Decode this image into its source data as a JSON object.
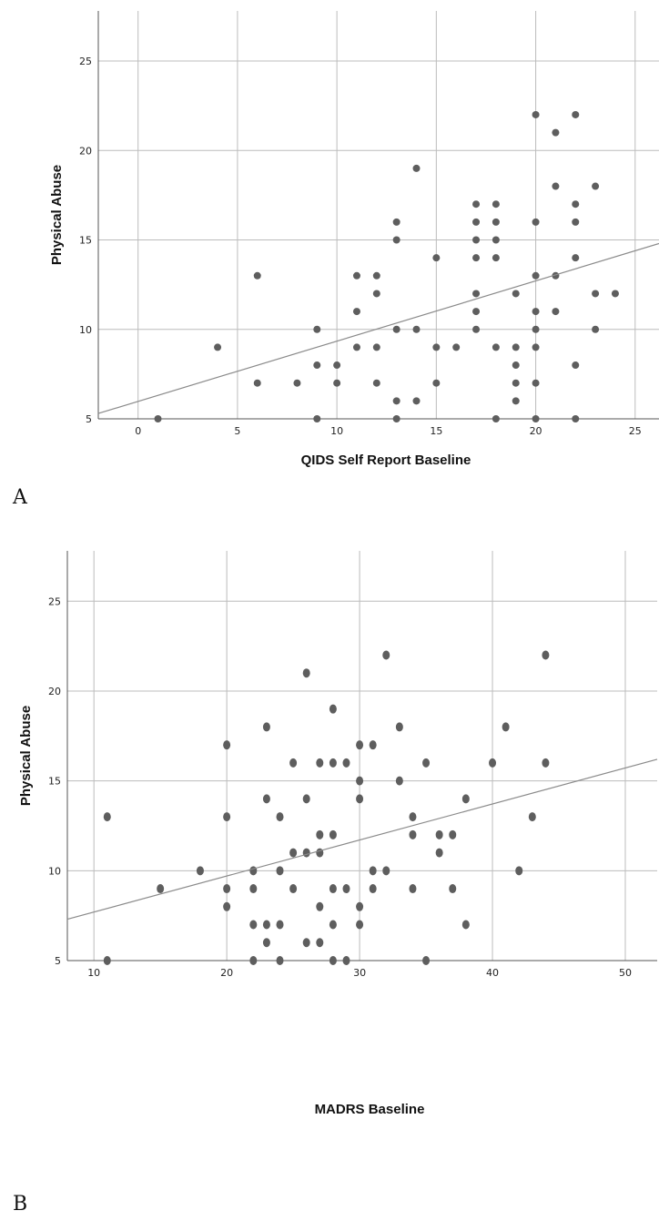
{
  "panels": [
    {
      "label": "A"
    },
    {
      "label": "B"
    }
  ],
  "chart_data": [
    {
      "type": "scatter",
      "xlabel": "QIDS Self Report Baseline",
      "ylabel": "Physical Abuse",
      "xlim": [
        -2,
        26.2
      ],
      "ylim": [
        5,
        27.8
      ],
      "xticks": [
        0,
        5,
        10,
        15,
        20,
        25
      ],
      "yticks": [
        5,
        10,
        15,
        20,
        25
      ],
      "grid": true,
      "point_color": "#5e5e5e",
      "points": [
        {
          "x": 1,
          "y": 5
        },
        {
          "x": 4,
          "y": 9
        },
        {
          "x": 6,
          "y": 13
        },
        {
          "x": 6,
          "y": 7
        },
        {
          "x": 8,
          "y": 7
        },
        {
          "x": 9,
          "y": 10
        },
        {
          "x": 9,
          "y": 8
        },
        {
          "x": 9,
          "y": 5
        },
        {
          "x": 10,
          "y": 8
        },
        {
          "x": 10,
          "y": 7
        },
        {
          "x": 11,
          "y": 13
        },
        {
          "x": 11,
          "y": 11
        },
        {
          "x": 11,
          "y": 9
        },
        {
          "x": 12,
          "y": 13
        },
        {
          "x": 12,
          "y": 12
        },
        {
          "x": 12,
          "y": 9
        },
        {
          "x": 12,
          "y": 7
        },
        {
          "x": 13,
          "y": 16
        },
        {
          "x": 13,
          "y": 15
        },
        {
          "x": 13,
          "y": 10
        },
        {
          "x": 13,
          "y": 6
        },
        {
          "x": 13,
          "y": 5
        },
        {
          "x": 14,
          "y": 19
        },
        {
          "x": 14,
          "y": 10
        },
        {
          "x": 14,
          "y": 6
        },
        {
          "x": 15,
          "y": 14
        },
        {
          "x": 15,
          "y": 9
        },
        {
          "x": 15,
          "y": 7
        },
        {
          "x": 16,
          "y": 9
        },
        {
          "x": 17,
          "y": 17
        },
        {
          "x": 17,
          "y": 16
        },
        {
          "x": 17,
          "y": 15
        },
        {
          "x": 17,
          "y": 14
        },
        {
          "x": 17,
          "y": 12
        },
        {
          "x": 17,
          "y": 11
        },
        {
          "x": 17,
          "y": 10
        },
        {
          "x": 18,
          "y": 17
        },
        {
          "x": 18,
          "y": 16
        },
        {
          "x": 18,
          "y": 15
        },
        {
          "x": 18,
          "y": 14
        },
        {
          "x": 18,
          "y": 9
        },
        {
          "x": 18,
          "y": 5
        },
        {
          "x": 19,
          "y": 12
        },
        {
          "x": 19,
          "y": 9
        },
        {
          "x": 19,
          "y": 8
        },
        {
          "x": 19,
          "y": 7
        },
        {
          "x": 19,
          "y": 6
        },
        {
          "x": 20,
          "y": 22
        },
        {
          "x": 20,
          "y": 16
        },
        {
          "x": 20,
          "y": 13
        },
        {
          "x": 20,
          "y": 11
        },
        {
          "x": 20,
          "y": 10
        },
        {
          "x": 20,
          "y": 9
        },
        {
          "x": 20,
          "y": 7
        },
        {
          "x": 20,
          "y": 5
        },
        {
          "x": 21,
          "y": 21
        },
        {
          "x": 21,
          "y": 18
        },
        {
          "x": 21,
          "y": 13
        },
        {
          "x": 21,
          "y": 11
        },
        {
          "x": 22,
          "y": 22
        },
        {
          "x": 22,
          "y": 17
        },
        {
          "x": 22,
          "y": 16
        },
        {
          "x": 22,
          "y": 14
        },
        {
          "x": 22,
          "y": 8
        },
        {
          "x": 22,
          "y": 5
        },
        {
          "x": 23,
          "y": 18
        },
        {
          "x": 23,
          "y": 12
        },
        {
          "x": 23,
          "y": 10
        },
        {
          "x": 24,
          "y": 12
        }
      ],
      "fit_line": {
        "x": [
          -2,
          26.2
        ],
        "y": [
          5.3,
          14.8
        ]
      }
    },
    {
      "type": "scatter",
      "xlabel": "MADRS Baseline",
      "ylabel": "Physical Abuse",
      "xlim": [
        8,
        52.4
      ],
      "ylim": [
        5,
        27.8
      ],
      "xticks": [
        10,
        20,
        30,
        40,
        50
      ],
      "yticks": [
        5,
        10,
        15,
        20,
        25
      ],
      "grid": true,
      "point_color": "#5e5e5e",
      "points": [
        {
          "x": 11,
          "y": 13
        },
        {
          "x": 11,
          "y": 5
        },
        {
          "x": 15,
          "y": 9
        },
        {
          "x": 18,
          "y": 10
        },
        {
          "x": 20,
          "y": 17
        },
        {
          "x": 20,
          "y": 13
        },
        {
          "x": 20,
          "y": 9
        },
        {
          "x": 20,
          "y": 8
        },
        {
          "x": 22,
          "y": 10
        },
        {
          "x": 22,
          "y": 9
        },
        {
          "x": 22,
          "y": 7
        },
        {
          "x": 22,
          "y": 5
        },
        {
          "x": 23,
          "y": 18
        },
        {
          "x": 23,
          "y": 14
        },
        {
          "x": 23,
          "y": 7
        },
        {
          "x": 23,
          "y": 6
        },
        {
          "x": 24,
          "y": 13
        },
        {
          "x": 24,
          "y": 10
        },
        {
          "x": 24,
          "y": 7
        },
        {
          "x": 24,
          "y": 5
        },
        {
          "x": 25,
          "y": 16
        },
        {
          "x": 25,
          "y": 11
        },
        {
          "x": 25,
          "y": 9
        },
        {
          "x": 26,
          "y": 21
        },
        {
          "x": 26,
          "y": 14
        },
        {
          "x": 26,
          "y": 11
        },
        {
          "x": 26,
          "y": 6
        },
        {
          "x": 27,
          "y": 16
        },
        {
          "x": 27,
          "y": 12
        },
        {
          "x": 27,
          "y": 11
        },
        {
          "x": 27,
          "y": 8
        },
        {
          "x": 27,
          "y": 6
        },
        {
          "x": 28,
          "y": 19
        },
        {
          "x": 28,
          "y": 16
        },
        {
          "x": 28,
          "y": 12
        },
        {
          "x": 28,
          "y": 9
        },
        {
          "x": 28,
          "y": 7
        },
        {
          "x": 28,
          "y": 5
        },
        {
          "x": 29,
          "y": 16
        },
        {
          "x": 29,
          "y": 9
        },
        {
          "x": 29,
          "y": 5
        },
        {
          "x": 30,
          "y": 17
        },
        {
          "x": 30,
          "y": 15
        },
        {
          "x": 30,
          "y": 14
        },
        {
          "x": 30,
          "y": 8
        },
        {
          "x": 30,
          "y": 7
        },
        {
          "x": 31,
          "y": 17
        },
        {
          "x": 31,
          "y": 10
        },
        {
          "x": 31,
          "y": 9
        },
        {
          "x": 32,
          "y": 22
        },
        {
          "x": 32,
          "y": 10
        },
        {
          "x": 33,
          "y": 18
        },
        {
          "x": 33,
          "y": 15
        },
        {
          "x": 34,
          "y": 13
        },
        {
          "x": 34,
          "y": 12
        },
        {
          "x": 34,
          "y": 9
        },
        {
          "x": 35,
          "y": 16
        },
        {
          "x": 35,
          "y": 5
        },
        {
          "x": 36,
          "y": 12
        },
        {
          "x": 36,
          "y": 11
        },
        {
          "x": 37,
          "y": 12
        },
        {
          "x": 37,
          "y": 9
        },
        {
          "x": 38,
          "y": 14
        },
        {
          "x": 38,
          "y": 7
        },
        {
          "x": 40,
          "y": 16
        },
        {
          "x": 41,
          "y": 18
        },
        {
          "x": 42,
          "y": 10
        },
        {
          "x": 43,
          "y": 13
        },
        {
          "x": 44,
          "y": 22
        },
        {
          "x": 44,
          "y": 16
        }
      ],
      "fit_line": {
        "x": [
          8,
          52.4
        ],
        "y": [
          7.3,
          16.2
        ]
      }
    }
  ]
}
